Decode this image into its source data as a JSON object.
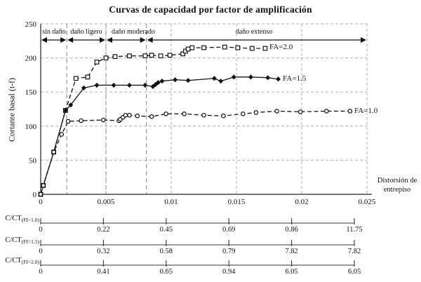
{
  "title": "Curvas de capacidad por factor de amplificación",
  "chart_data": {
    "type": "line",
    "title": "Curvas de capacidad por factor de amplificación",
    "xlabel": "Distorsión de entrepiso",
    "xlabel_line1": "Distorsión de",
    "xlabel_line2": "entrepiso",
    "ylabel": "Cortante basal (t-f)",
    "xlim": [
      0,
      0.025
    ],
    "ylim": [
      0,
      250
    ],
    "x_ticks": [
      0,
      0.005,
      0.01,
      0.015,
      0.02,
      0.025
    ],
    "x_tick_labels": [
      "0",
      "0.005",
      "0.01",
      "0.015",
      "0.02",
      "0.025"
    ],
    "y_ticks": [
      0,
      50,
      100,
      150,
      200,
      250
    ],
    "y_tick_labels": [
      "0",
      "50",
      "100",
      "150",
      "200",
      "250"
    ],
    "grid": true,
    "legend_position": "end-of-line labels",
    "colors": {
      "line": "#1a1a1a",
      "grid": "#b0b0b0",
      "boundary": "#8f8f8f"
    },
    "damage_zones": {
      "boundaries_x": [
        0.002,
        0.005,
        0.0081
      ],
      "labels": [
        "sin daño",
        "daño ligero",
        "daño moderado",
        "daño extenso"
      ]
    },
    "series": [
      {
        "name": "FA=2.0",
        "marker": "square-open",
        "line": "dashed",
        "points": [
          [
            0,
            0
          ],
          [
            0.0002,
            13
          ],
          [
            0.001,
            62
          ],
          [
            0.0019,
            123
          ],
          [
            0.0027,
            170
          ],
          [
            0.0036,
            172
          ],
          [
            0.0043,
            194
          ],
          [
            0.005,
            200
          ],
          [
            0.0057,
            202
          ],
          [
            0.0068,
            203
          ],
          [
            0.008,
            203
          ],
          [
            0.0085,
            204
          ],
          [
            0.0092,
            203
          ],
          [
            0.0099,
            204
          ],
          [
            0.0109,
            206
          ],
          [
            0.0111,
            210
          ],
          [
            0.0113,
            213
          ],
          [
            0.0116,
            215
          ],
          [
            0.0125,
            215
          ],
          [
            0.0141,
            216
          ],
          [
            0.0151,
            215
          ],
          [
            0.0162,
            214
          ],
          [
            0.0172,
            214
          ]
        ]
      },
      {
        "name": "FA=1.5",
        "marker": "diamond-filled",
        "line": "solid",
        "points": [
          [
            0,
            0
          ],
          [
            0.0002,
            13
          ],
          [
            0.001,
            62
          ],
          [
            0.0019,
            123
          ],
          [
            0.0023,
            131
          ],
          [
            0.0033,
            156
          ],
          [
            0.0043,
            160
          ],
          [
            0.0056,
            160
          ],
          [
            0.0068,
            160
          ],
          [
            0.008,
            160
          ],
          [
            0.0086,
            158
          ],
          [
            0.0088,
            161
          ],
          [
            0.009,
            164
          ],
          [
            0.0093,
            166
          ],
          [
            0.0103,
            168
          ],
          [
            0.0113,
            167
          ],
          [
            0.0133,
            170
          ],
          [
            0.0138,
            166
          ],
          [
            0.0148,
            172
          ],
          [
            0.0161,
            172
          ],
          [
            0.0174,
            171
          ],
          [
            0.0182,
            169
          ]
        ]
      },
      {
        "name": "FA=1.0",
        "marker": "circle-open",
        "line": "dashed",
        "points": [
          [
            0,
            0
          ],
          [
            0.0002,
            13
          ],
          [
            0.001,
            62
          ],
          [
            0.0016,
            88
          ],
          [
            0.0021,
            107
          ],
          [
            0.0031,
            108
          ],
          [
            0.0048,
            109
          ],
          [
            0.006,
            108
          ],
          [
            0.0061,
            110
          ],
          [
            0.0063,
            113
          ],
          [
            0.0065,
            116
          ],
          [
            0.0068,
            116
          ],
          [
            0.0074,
            115
          ],
          [
            0.0085,
            114
          ],
          [
            0.0096,
            118
          ],
          [
            0.011,
            118
          ],
          [
            0.0125,
            116
          ],
          [
            0.014,
            115
          ],
          [
            0.0155,
            118
          ],
          [
            0.0165,
            120
          ],
          [
            0.0181,
            122
          ],
          [
            0.0199,
            121
          ],
          [
            0.0219,
            122
          ],
          [
            0.0237,
            122
          ]
        ]
      }
    ],
    "secondary_scales": [
      {
        "label": "C/CT",
        "sub": "(FI=1.0)",
        "values": [
          "0",
          "0.22",
          "0.45",
          "0.69",
          "0.86",
          "11.75"
        ]
      },
      {
        "label": "C/CT",
        "sub": "(FI=1.5)",
        "values": [
          "0",
          "0.32",
          "0.58",
          "0.79",
          "7.82",
          "7.82"
        ]
      },
      {
        "label": "C/CT",
        "sub": "(FI=2.0)",
        "values": [
          "0",
          "0.41",
          "0.65",
          "0.94",
          "6.05",
          "6.05"
        ]
      }
    ]
  }
}
